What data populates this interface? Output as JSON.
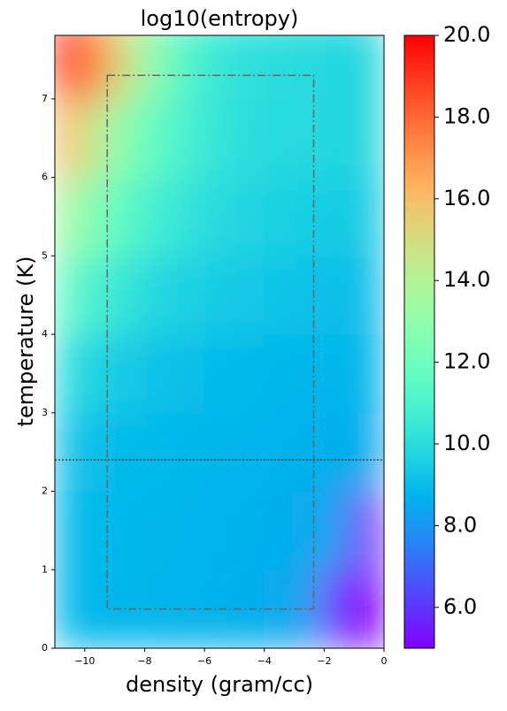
{
  "chart_data": {
    "type": "heatmap",
    "title": "log10(entropy)",
    "x_label": "density (gram/cc)",
    "y_label": "temperature (K)",
    "colormap": "rainbow",
    "x": [
      -10.5,
      -9.5,
      -8.5,
      -7.5,
      -6.5,
      -5.5,
      -4.5,
      -3.5,
      -2.5,
      -1.5,
      -0.5
    ],
    "y": [
      0.5,
      1.5,
      2.5,
      3.5,
      4.5,
      5.5,
      6.5,
      7.5
    ],
    "z": [
      [
        8.9,
        8.8,
        8.8,
        8.8,
        8.7,
        8.7,
        8.6,
        8.5,
        8.3,
        5,
        5
      ],
      [
        8.9,
        8.9,
        8.8,
        8.8,
        8.8,
        8.7,
        8.7,
        8.6,
        8.5,
        8.2,
        5
      ],
      [
        9.1,
        9.0,
        8.9,
        8.9,
        8.8,
        8.8,
        8.8,
        8.7,
        8.7,
        8.6,
        8.5
      ],
      [
        10,
        9.6,
        9.3,
        9.1,
        9.0,
        8.9,
        8.9,
        8.8,
        8.8,
        8.8,
        8.8
      ],
      [
        11.5,
        10.8,
        10.2,
        9.8,
        9.6,
        9.4,
        9.3,
        9.2,
        9.1,
        9.0,
        9.0
      ],
      [
        13.5,
        12.3,
        11.3,
        10.7,
        10.2,
        9.9,
        9.7,
        9.6,
        9.5,
        9.4,
        9.4
      ],
      [
        16,
        14,
        12.5,
        11.5,
        10.8,
        10.3,
        10,
        9.9,
        9.9,
        9.8,
        9.8
      ],
      [
        19.5,
        17,
        14.5,
        12.5,
        11,
        10.4,
        10.1,
        10,
        9.9,
        9.8,
        9.8
      ]
    ],
    "xlim": [
      -11,
      0
    ],
    "ylim": [
      0,
      7.81
    ],
    "xticks": [
      {
        "value": -10,
        "label": "−10"
      },
      {
        "value": -8,
        "label": "−8"
      },
      {
        "value": -6,
        "label": "−6"
      },
      {
        "value": -4,
        "label": "−4"
      },
      {
        "value": -2,
        "label": "−2"
      },
      0
    ],
    "yticks": [
      0,
      1,
      2,
      3,
      4,
      5,
      6,
      7
    ],
    "clim": [
      5,
      20
    ],
    "cticks": [
      {
        "value": 6,
        "label": "6.0"
      },
      {
        "value": 8,
        "label": "8.0"
      },
      {
        "value": 10,
        "label": "10.0"
      },
      {
        "value": 12,
        "label": "12.0"
      },
      {
        "value": 14,
        "label": "14.0"
      },
      {
        "value": 16,
        "label": "16.0"
      },
      {
        "value": 18,
        "label": "18.0"
      },
      {
        "value": 20,
        "label": "20.0"
      }
    ],
    "box": {
      "x": [
        -9.25,
        -2.35
      ],
      "y": [
        0.5,
        7.3
      ]
    },
    "hline": 2.4
  }
}
